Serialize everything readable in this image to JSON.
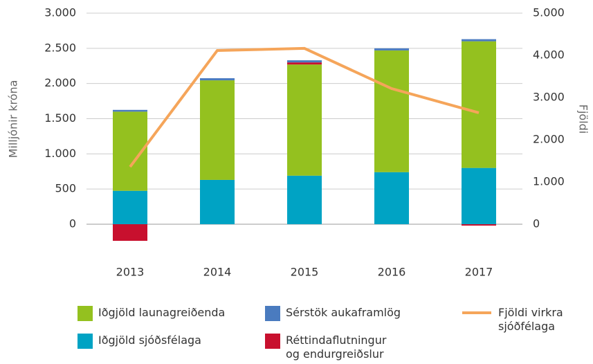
{
  "chart_data": {
    "type": "bar",
    "categories": [
      "2013",
      "2014",
      "2015",
      "2016",
      "2017"
    ],
    "ylabel": "Milljónir króna",
    "y2label": "Fjöldi",
    "ylim": [
      0,
      3000
    ],
    "yticks": [
      0,
      {
        "value": 500,
        "label": "500"
      },
      {
        "value": 1000,
        "label": "1.000"
      },
      {
        "value": 1500,
        "label": "1.500"
      },
      {
        "value": 2000,
        "label": "2.000"
      },
      {
        "value": 2500,
        "label": "2.500"
      },
      {
        "value": 3000,
        "label": "3.000"
      }
    ],
    "y2lim": [
      0,
      5000
    ],
    "y2ticks": [
      0,
      {
        "value": 1000,
        "label": "1.000"
      },
      {
        "value": 2000,
        "label": "2.000"
      },
      {
        "value": 3000,
        "label": "3.000"
      },
      {
        "value": 4000,
        "label": "4.000"
      },
      {
        "value": 5000,
        "label": "5.000"
      }
    ],
    "grid": true,
    "series": [
      {
        "name": "Iðgjöld sjóðsfélaga",
        "color": "#00a3c4",
        "values": [
          475,
          630,
          690,
          740,
          800
        ]
      },
      {
        "name": "Iðgjöld launagreiðenda",
        "color": "#94c11f",
        "values": [
          1125,
          1415,
          1580,
          1730,
          1800
        ]
      },
      {
        "name": "Réttindaflutningur og endurgreiðslur",
        "color": "#c8102e",
        "values": [
          -236,
          0,
          30,
          0,
          -20
        ]
      },
      {
        "name": "Sérstök aukaframlög",
        "color": "#4a7bbf",
        "values": [
          25,
          30,
          30,
          30,
          30
        ]
      },
      {
        "name": "Fjöldi virkra sjóðfélaga",
        "type": "line",
        "axis": "y2",
        "color": "#f5a55a",
        "values": [
          1360,
          4115,
          4165,
          3213,
          2640
        ]
      }
    ]
  }
}
